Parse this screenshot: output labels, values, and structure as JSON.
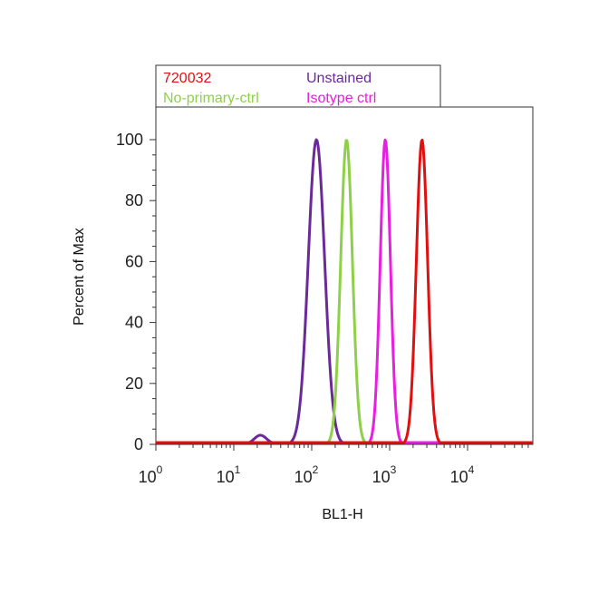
{
  "chart_data": {
    "type": "line",
    "xlabel": "BL1-H",
    "ylabel": "Percent of Max",
    "x_scale": "log",
    "xlim": [
      1,
      60000
    ],
    "ylim": [
      0,
      108
    ],
    "x_ticks": [
      {
        "base": "10",
        "exp": "0",
        "value": 1
      },
      {
        "base": "10",
        "exp": "1",
        "value": 10
      },
      {
        "base": "10",
        "exp": "2",
        "value": 100
      },
      {
        "base": "10",
        "exp": "3",
        "value": 1000
      },
      {
        "base": "10",
        "exp": "4",
        "value": 10000
      }
    ],
    "y_ticks": [
      "0",
      "20",
      "40",
      "60",
      "80",
      "100"
    ],
    "legend_position": "top",
    "series": [
      {
        "name": "Unstained",
        "color": "#6a2a9a",
        "peak_x": 115,
        "sigma_decades": 0.105,
        "shoulder_x": 22,
        "shoulder_h": 3
      },
      {
        "name": "No-primary-ctrl",
        "color": "#8fd04a",
        "peak_x": 280,
        "sigma_decades": 0.075
      },
      {
        "name": "Isotype ctrl",
        "color": "#e81ee0",
        "peak_x": 880,
        "sigma_decades": 0.065
      },
      {
        "name": "720032",
        "color": "#e01010",
        "peak_x": 2600,
        "sigma_decades": 0.072
      }
    ],
    "legend_rows": [
      [
        {
          "label": "720032",
          "color": "#e01010"
        },
        {
          "label": "Unstained",
          "color": "#6a2a9a"
        }
      ],
      [
        {
          "label": "No-primary-ctrl",
          "color": "#8fd04a"
        },
        {
          "label": "Isotype ctrl",
          "color": "#e81ee0"
        }
      ]
    ]
  }
}
